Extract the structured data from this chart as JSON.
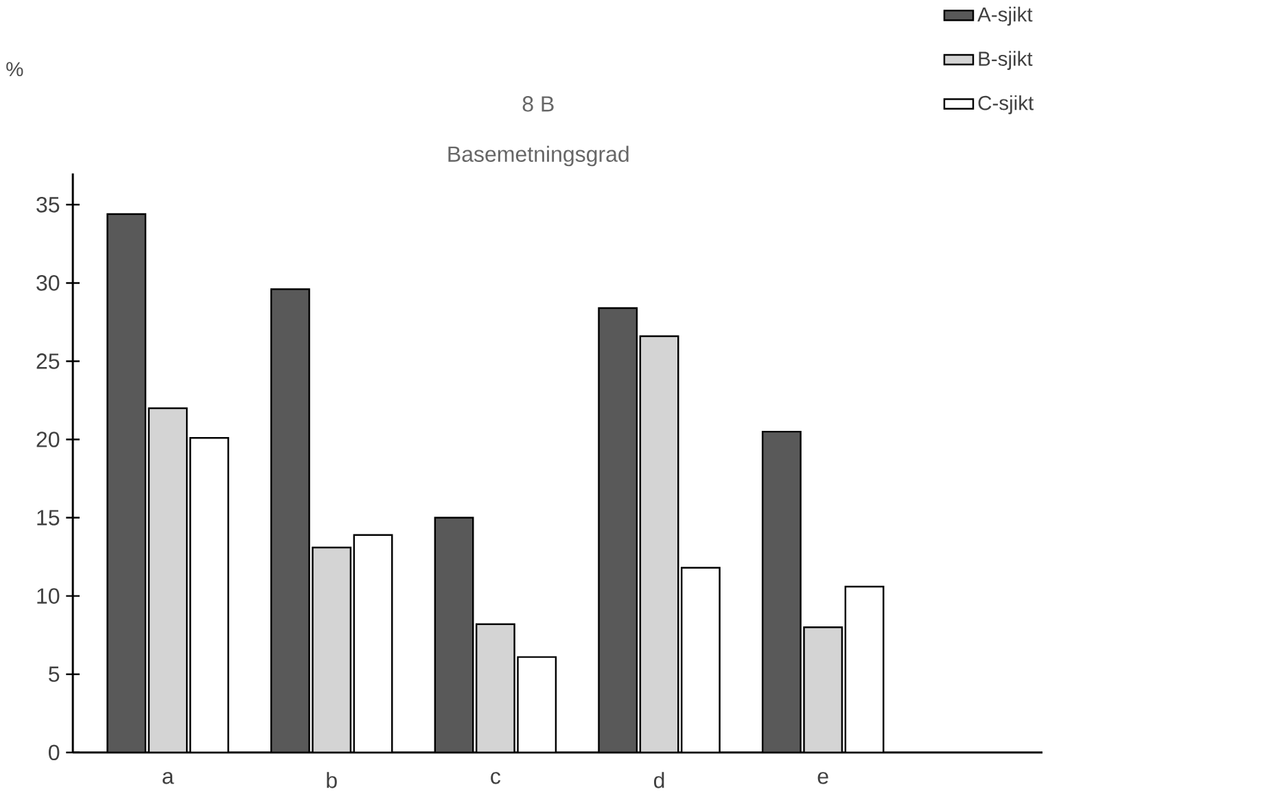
{
  "chart_data": {
    "type": "bar",
    "title": "8 B",
    "subtitle": "Basemetningsgrad",
    "ylabel": "%",
    "categories": [
      "a",
      "b",
      "c",
      "d",
      "e"
    ],
    "series": [
      {
        "name": "A-sjikt",
        "color": "#595959",
        "values": [
          34.4,
          29.6,
          15.0,
          28.4,
          20.5
        ]
      },
      {
        "name": "B-sjikt",
        "color": "#d4d4d4",
        "values": [
          22.0,
          13.1,
          8.2,
          26.6,
          8.0
        ]
      },
      {
        "name": "C-sjikt",
        "color": "#ffffff",
        "values": [
          20.1,
          13.9,
          6.1,
          11.8,
          10.6
        ]
      }
    ],
    "ylim": [
      0,
      37
    ],
    "yticks": [
      0,
      5,
      10,
      15,
      20,
      25,
      30,
      35
    ],
    "legend": "top right",
    "grid": false
  }
}
